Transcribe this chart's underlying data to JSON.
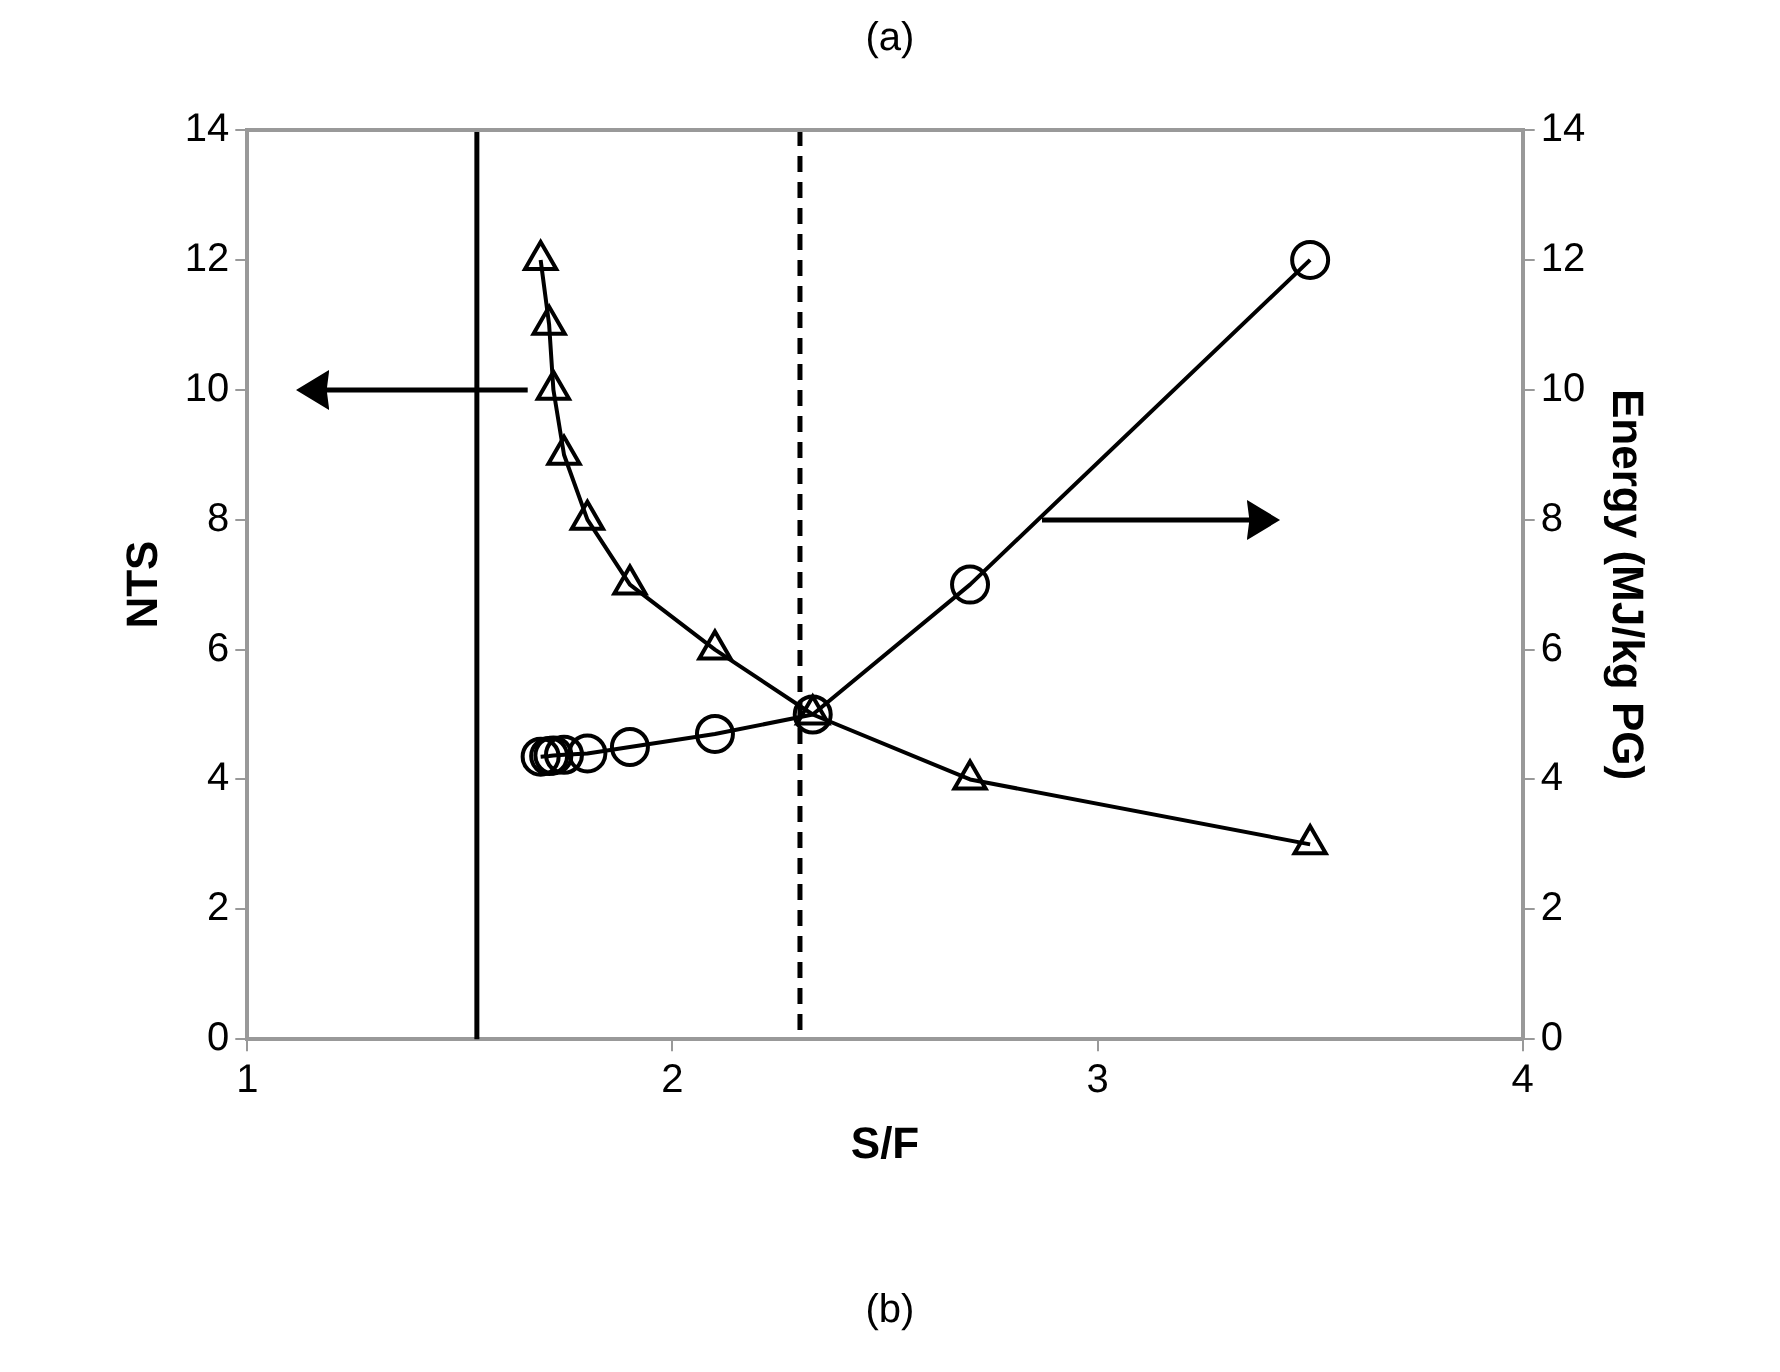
{
  "chart_data": {
    "type": "line",
    "title": "(a)",
    "xlabel": "S/F",
    "ylabel": "NTS",
    "y2label": "Energy (MJ/kg PG)",
    "annotations": [
      "(b)"
    ],
    "xlim": [
      1,
      4
    ],
    "xticks": [
      1,
      2,
      3,
      4
    ],
    "ylim": [
      0,
      14
    ],
    "yticks": [
      0,
      2,
      4,
      6,
      8,
      10,
      12,
      14
    ],
    "y2lim": [
      0,
      14
    ],
    "y2ticks": [
      0,
      2,
      4,
      6,
      8,
      10,
      12,
      14
    ],
    "series": [
      {
        "color": "#000000",
        "marker": "triangle",
        "x": [
          1.69,
          1.71,
          1.72,
          1.745,
          1.8,
          1.9,
          2.1,
          2.33,
          2.7,
          3.5
        ],
        "values": [
          12,
          11,
          10,
          9,
          8,
          7,
          6,
          5,
          4,
          3
        ]
      },
      {
        "color": "#000000",
        "marker": "circle",
        "axis": "y2",
        "x": [
          1.69,
          1.71,
          1.72,
          1.745,
          1.8,
          1.9,
          2.1,
          2.33,
          2.7,
          3.5
        ],
        "values": [
          4.35,
          4.36,
          4.37,
          4.38,
          4.4,
          4.5,
          4.7,
          5.0,
          7.0,
          12.0
        ]
      }
    ],
    "ref_lines": [
      {
        "axis": "x",
        "value": 1.54,
        "color": "#000000",
        "line_style": "solid"
      },
      {
        "axis": "x",
        "value": 2.3,
        "color": "#000000",
        "line_style": "dashed"
      }
    ],
    "grid": false,
    "legend": false,
    "line_style": "solid"
  }
}
